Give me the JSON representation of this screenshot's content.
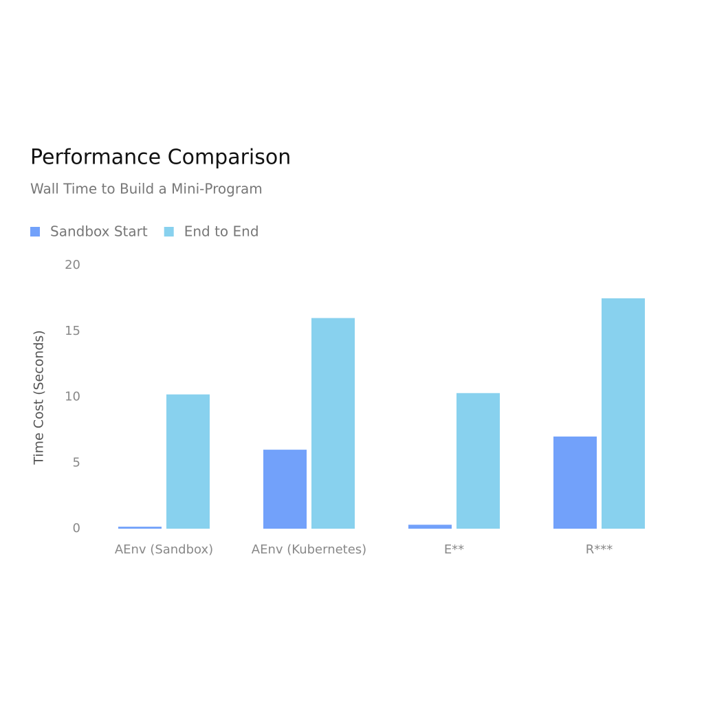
{
  "chart_data": {
    "type": "bar",
    "title": "Performance Comparison",
    "subtitle": "Wall Time to Build a Mini-Program",
    "y_label": "Time Cost (Seconds)",
    "categories": [
      "AEnv (Sandbox)",
      "AEnv (Kubernetes)",
      "E**",
      "R***"
    ],
    "series": [
      {
        "name": "Sandbox Start",
        "color": "#72a1fa",
        "values": [
          0.15,
          6.0,
          0.3,
          7.0
        ]
      },
      {
        "name": "End to End",
        "color": "#88d1ee",
        "values": [
          10.2,
          16.0,
          10.3,
          17.5
        ]
      }
    ],
    "ylim": [
      0,
      20
    ],
    "yticks": [
      0,
      5,
      10,
      15,
      20
    ],
    "grid": false,
    "legend": "top-left"
  }
}
